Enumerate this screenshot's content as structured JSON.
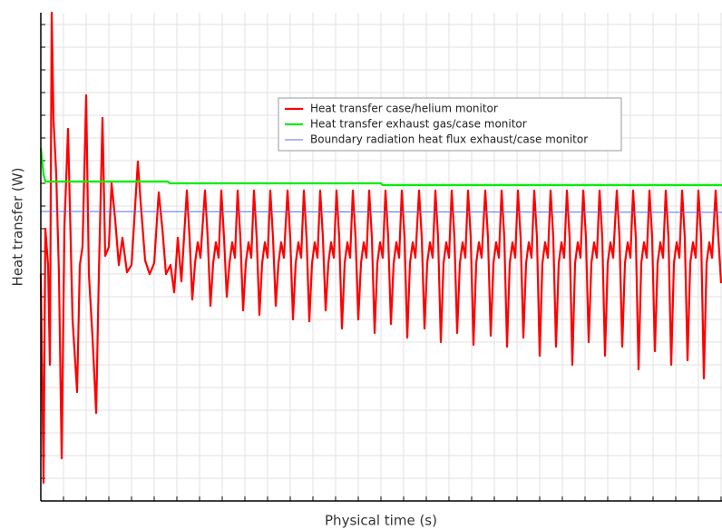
{
  "chart_data": {
    "type": "line",
    "xlabel": "Physical time (s)",
    "ylabel": "Heat transfer (W)",
    "xlim": [
      0,
      751
    ],
    "ylim": [
      0,
      538
    ],
    "xticks": [
      0,
      25,
      50,
      75,
      100,
      125,
      150,
      175,
      200,
      225,
      250,
      275,
      300,
      325,
      350,
      375,
      400,
      425,
      450,
      475,
      500,
      525,
      550,
      575,
      600,
      625,
      650,
      675,
      700,
      725,
      750
    ],
    "yticks": [
      0,
      25,
      50,
      75,
      100,
      125,
      150,
      175,
      200,
      225,
      250,
      275,
      300,
      325,
      350,
      375,
      400,
      425,
      450,
      475,
      500,
      525
    ],
    "grid": true,
    "legend": "upper right",
    "series": [
      {
        "name": "Heat transfer case/helium monitor",
        "color": "#ff0000",
        "width": 2.2,
        "x": [
          0,
          2,
          3,
          5,
          8,
          10,
          12,
          14,
          17,
          20,
          23,
          26,
          30,
          35,
          40,
          43,
          46,
          50,
          53,
          57,
          61,
          64,
          68,
          71,
          75,
          78,
          82,
          86,
          90,
          95,
          100,
          107,
          110,
          115,
          120,
          125,
          130,
          134,
          138,
          143,
          147,
          151,
          155,
          161,
          164,
          167,
          170,
          173,
          176,
          181,
          184,
          187,
          190,
          193,
          196,
          199,
          202,
          205,
          208,
          211,
          214,
          217,
          220,
          223,
          226,
          229,
          232,
          235,
          238,
          241,
          244,
          247,
          250,
          253,
          256,
          259,
          262,
          265,
          268,
          272,
          275,
          278,
          281,
          284,
          287,
          290,
          293,
          296,
          299,
          302,
          305,
          308,
          311,
          314,
          317,
          320,
          323,
          326,
          329,
          332,
          335,
          338,
          341,
          344,
          347,
          350,
          353,
          356,
          359,
          362,
          365,
          368,
          371,
          374,
          377,
          380,
          383,
          386,
          389,
          392,
          395,
          398,
          401,
          404,
          407,
          410,
          413,
          417,
          420,
          423,
          426,
          429,
          432,
          435,
          438,
          441,
          444,
          447,
          450,
          453,
          456,
          459,
          462,
          465,
          468,
          471,
          474,
          477,
          480,
          483,
          486,
          490,
          493,
          496,
          499,
          502,
          505,
          508,
          511,
          514,
          517,
          520,
          523,
          526,
          529,
          532,
          535,
          538,
          541,
          544,
          547,
          550,
          553,
          556,
          559,
          562,
          565,
          568,
          571,
          574,
          577,
          580,
          583,
          586,
          589,
          592,
          595,
          598,
          601,
          604,
          607,
          610,
          613,
          616,
          619,
          622,
          625,
          628,
          631,
          635,
          638,
          641,
          644,
          647,
          650,
          653,
          656,
          659,
          662,
          665,
          668,
          671,
          674,
          677,
          680,
          683,
          686,
          689,
          692,
          695,
          698,
          701,
          704,
          707,
          710,
          713,
          716,
          719,
          722,
          725,
          728,
          731,
          734,
          737,
          740,
          744,
          747,
          750
        ],
        "values": [
          250,
          100,
          20,
          300,
          260,
          150,
          538,
          420,
          360,
          250,
          47,
          300,
          410,
          200,
          120,
          260,
          280,
          447,
          250,
          180,
          97,
          250,
          422,
          270,
          280,
          350,
          310,
          260,
          290,
          252,
          260,
          374,
          330,
          265,
          250,
          262,
          340,
          300,
          250,
          260,
          230,
          290,
          242,
          342,
          290,
          222,
          262,
          285,
          268,
          342,
          290,
          215,
          262,
          285,
          268,
          342,
          290,
          225,
          262,
          285,
          268,
          342,
          290,
          210,
          262,
          285,
          268,
          342,
          290,
          205,
          262,
          285,
          268,
          342,
          290,
          215,
          262,
          285,
          268,
          342,
          290,
          200,
          262,
          285,
          268,
          342,
          290,
          198,
          262,
          285,
          268,
          342,
          290,
          210,
          262,
          285,
          268,
          342,
          290,
          190,
          262,
          285,
          268,
          342,
          290,
          200,
          262,
          285,
          268,
          342,
          290,
          185,
          262,
          285,
          268,
          342,
          290,
          195,
          262,
          285,
          268,
          342,
          290,
          180,
          262,
          285,
          268,
          342,
          290,
          190,
          262,
          285,
          268,
          342,
          290,
          175,
          262,
          285,
          268,
          342,
          290,
          185,
          262,
          285,
          268,
          342,
          290,
          172,
          262,
          285,
          268,
          342,
          290,
          182,
          262,
          285,
          268,
          342,
          290,
          170,
          262,
          285,
          268,
          342,
          290,
          180,
          262,
          285,
          268,
          342,
          290,
          160,
          262,
          285,
          268,
          342,
          290,
          170,
          262,
          285,
          268,
          342,
          290,
          150,
          262,
          285,
          268,
          342,
          290,
          175,
          262,
          285,
          268,
          342,
          290,
          160,
          262,
          285,
          268,
          342,
          290,
          170,
          262,
          285,
          268,
          342,
          290,
          145,
          262,
          285,
          268,
          342,
          290,
          165,
          262,
          285,
          268,
          342,
          290,
          150,
          262,
          285,
          268,
          342,
          290,
          155,
          262,
          285,
          268,
          342,
          290,
          135,
          262,
          285,
          268,
          342,
          290,
          240
        ]
      },
      {
        "name": "Heat transfer exhaust gas/case monitor",
        "color": "#00ee00",
        "width": 2.2,
        "x": [
          0,
          3,
          5,
          140,
          142,
          375,
          377,
          751
        ],
        "values": [
          389,
          360,
          352,
          352,
          350,
          350,
          348,
          348
        ]
      },
      {
        "name": "Boundary radiation heat flux exhaust/case monitor",
        "color": "#5b6fe0",
        "width": 1,
        "x": [
          0,
          751
        ],
        "values": [
          319,
          318
        ]
      }
    ]
  }
}
